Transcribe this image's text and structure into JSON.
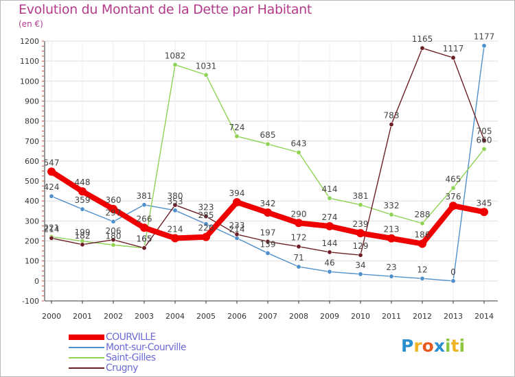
{
  "title": "Evolution du Montant de la Dette par Habitant",
  "unit_label": "(en €)",
  "logo_text": "Proxiti",
  "logo_letters": [
    {
      "ch": "P",
      "color": "#2a8fd0"
    },
    {
      "ch": "r",
      "color": "#f0b323"
    },
    {
      "ch": "o",
      "color": "#e8591f"
    },
    {
      "ch": "x",
      "color": "#2a8fd0"
    },
    {
      "ch": "i",
      "color": "#8cc63f"
    },
    {
      "ch": "t",
      "color": "#f0b323"
    },
    {
      "ch": "i",
      "color": "#8cc63f"
    }
  ],
  "chart_data": {
    "type": "line",
    "title": "Evolution du Montant de la Dette par Habitant",
    "ylabel": "(en €)",
    "xlabel": "",
    "x": [
      2000,
      2001,
      2002,
      2003,
      2004,
      2005,
      2006,
      2007,
      2008,
      2009,
      2010,
      2011,
      2012,
      2013,
      2014
    ],
    "ylim": [
      -100,
      1200
    ],
    "y_ticks": [
      -100,
      0,
      100,
      200,
      300,
      400,
      500,
      600,
      700,
      800,
      900,
      1000,
      1100,
      1200
    ],
    "grid": "horizontal",
    "legend_position": "bottom-left",
    "series": [
      {
        "name": "COURVILLE",
        "color": "#ee0000",
        "values": [
          547,
          448,
          360,
          266,
          214,
          220,
          394,
          342,
          290,
          274,
          239,
          213,
          186,
          376,
          345
        ]
      },
      {
        "name": "Mont-sur-Courville",
        "color": "#4f8fcc",
        "values": [
          424,
          359,
          297,
          381,
          353,
          285,
          214,
          139,
          71,
          46,
          34,
          23,
          12,
          0,
          1177
        ]
      },
      {
        "name": "Saint-Gilles",
        "color": "#8ed354",
        "values": [
          221,
          199,
          180,
          165,
          1082,
          1031,
          724,
          685,
          643,
          414,
          381,
          332,
          288,
          465,
          660
        ]
      },
      {
        "name": "Crugny",
        "color": "#6b1e25",
        "values": [
          214,
          182,
          206,
          165,
          380,
          323,
          233,
          197,
          172,
          144,
          129,
          783,
          1165,
          1117,
          705
        ]
      }
    ]
  }
}
